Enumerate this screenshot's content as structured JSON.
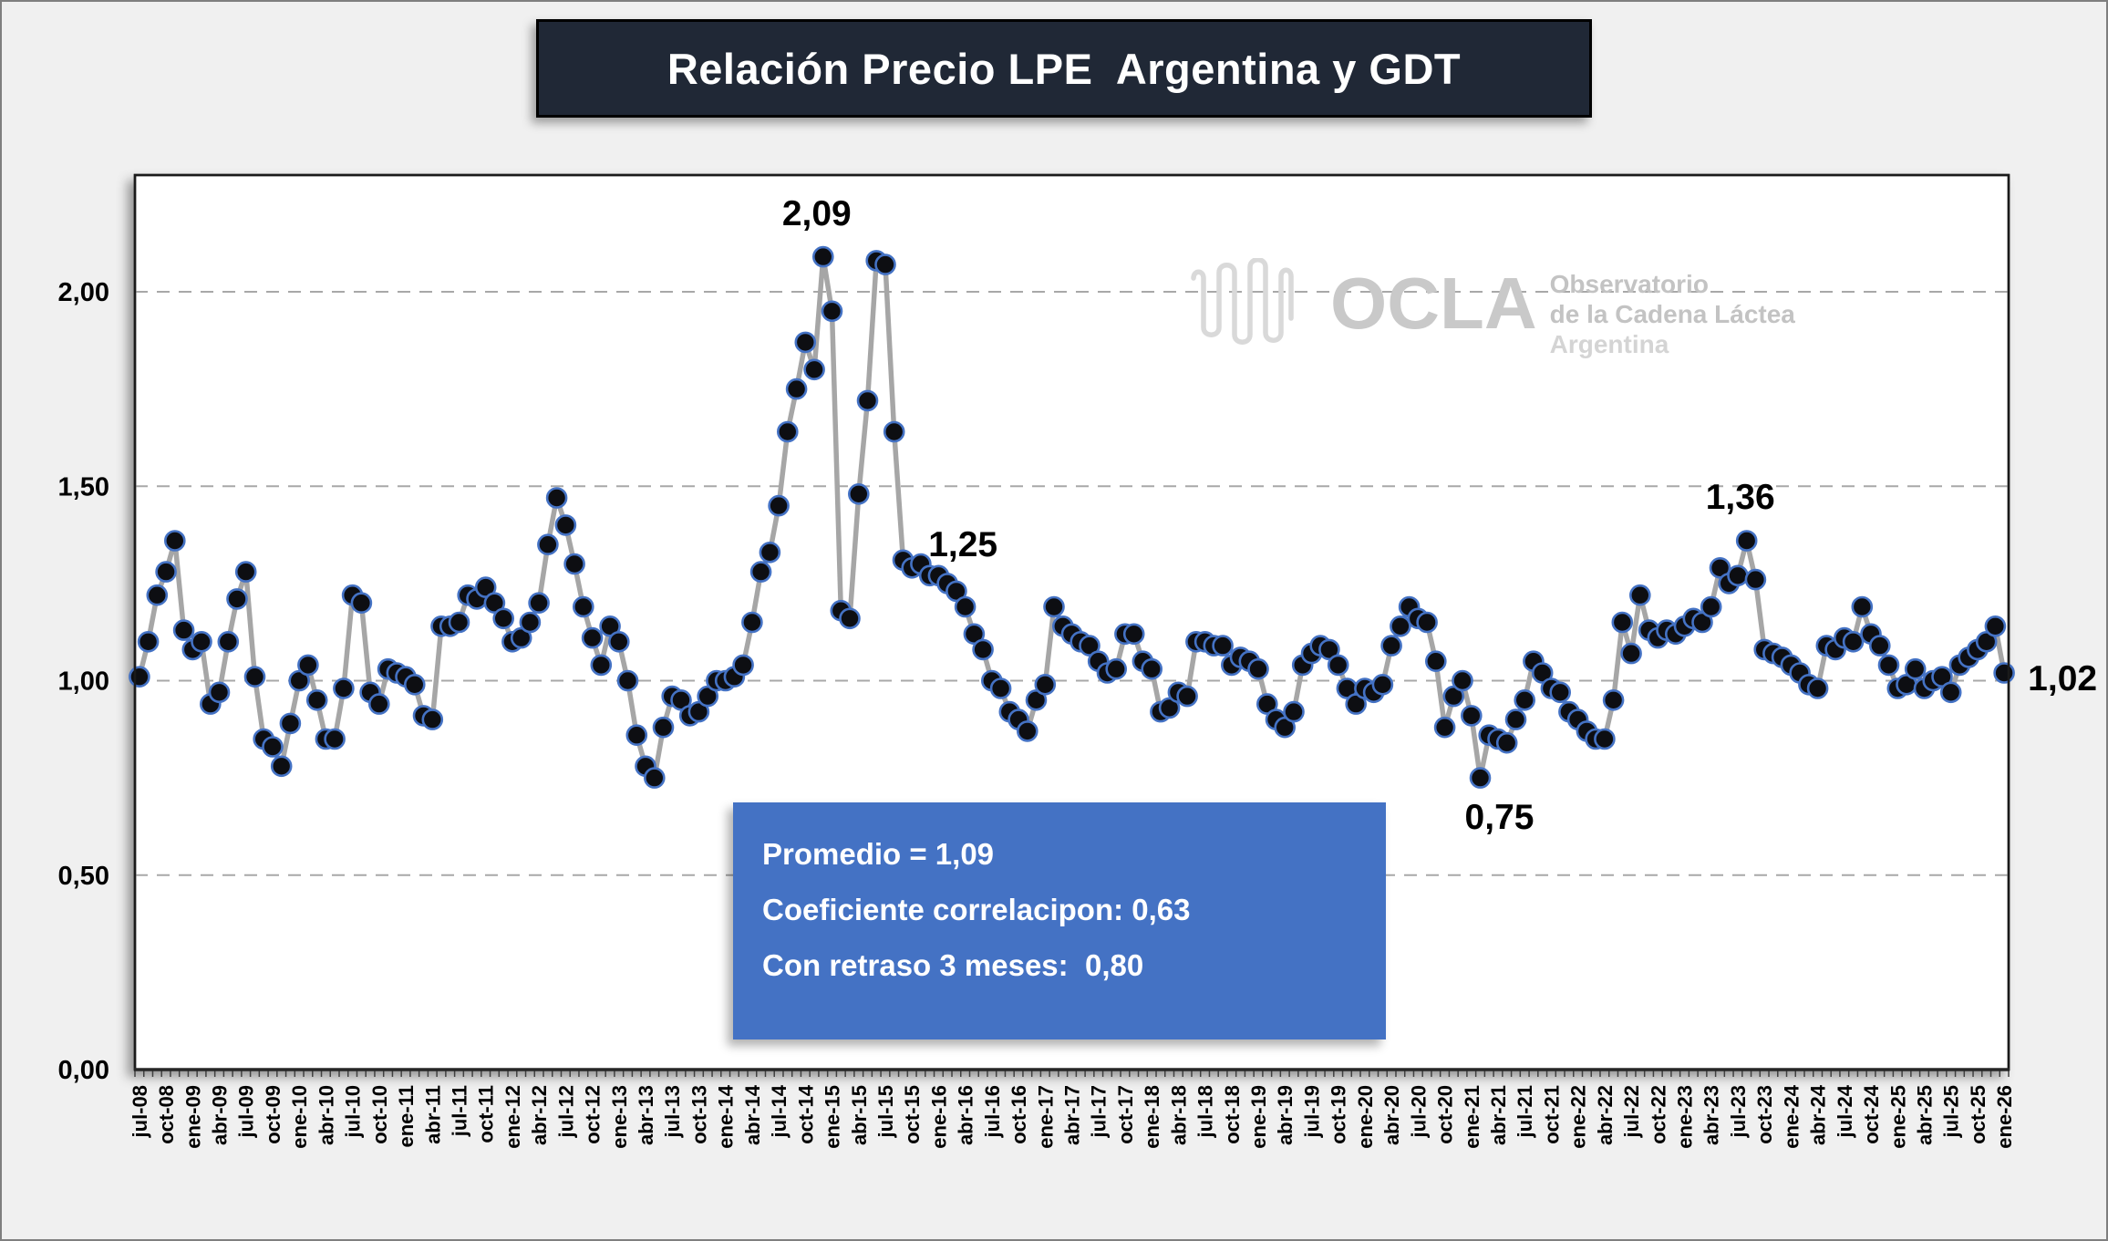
{
  "title": "Relación Precio LPE  Argentina y GDT",
  "logo": {
    "brand": "OCLA",
    "line1": "Observatorio",
    "line2": "de la Cadena Láctea",
    "line3": "Argentina"
  },
  "info_box": {
    "line1": "Promedio = 1,09",
    "line2": "Coeficiente correlacipon: 0,63",
    "line3": "Con retraso 3 meses:  0,80"
  },
  "chart_data": {
    "type": "line",
    "title": "Relación Precio LPE Argentina y GDT",
    "xlabel": "",
    "ylabel": "",
    "ylim": [
      0,
      2.3
    ],
    "grid": "horizontal-dashed",
    "legend_position": "none",
    "x_label_interval_months": 3,
    "x_labels": [
      "jul-08",
      "oct-08",
      "ene-09",
      "abr-09",
      "jul-09",
      "oct-09",
      "ene-10",
      "abr-10",
      "jul-10",
      "oct-10",
      "ene-11",
      "abr-11",
      "jul-11",
      "oct-11",
      "ene-12",
      "abr-12",
      "jul-12",
      "oct-12",
      "ene-13",
      "abr-13",
      "jul-13",
      "oct-13",
      "ene-14",
      "abr-14",
      "jul-14",
      "oct-14",
      "ene-15",
      "abr-15",
      "jul-15",
      "oct-15",
      "ene-16",
      "abr-16",
      "jul-16",
      "oct-16",
      "ene-17",
      "abr-17",
      "jul-17",
      "oct-17",
      "ene-18",
      "abr-18",
      "jul-18",
      "oct-18",
      "ene-19",
      "abr-19",
      "jul-19",
      "oct-19",
      "ene-20",
      "abr-20",
      "jul-20",
      "oct-20",
      "ene-21",
      "abr-21",
      "jul-21",
      "oct-21",
      "ene-22",
      "abr-22",
      "jul-22",
      "oct-22",
      "ene-23",
      "abr-23",
      "jul-23",
      "oct-23",
      "ene-24",
      "abr-24",
      "jul-24",
      "oct-24",
      "ene-25",
      "abr-25",
      "jul-25",
      "oct-25",
      "ene-26"
    ],
    "y_ticks": [
      "0,00",
      "0,50",
      "1,00",
      "1,50",
      "2,00"
    ],
    "y_tick_values": [
      0,
      0.5,
      1.0,
      1.5,
      2.0
    ],
    "series": [
      {
        "name": "Relación Precio LPE Argentina y GDT",
        "start_month": "jul-08",
        "frequency": "monthly",
        "values": [
          1.01,
          1.1,
          1.22,
          1.28,
          1.36,
          1.13,
          1.08,
          1.1,
          0.94,
          0.97,
          1.1,
          1.21,
          1.28,
          1.01,
          0.85,
          0.83,
          0.78,
          0.89,
          1.0,
          1.04,
          0.95,
          0.85,
          0.85,
          0.98,
          1.22,
          1.2,
          0.97,
          0.94,
          1.03,
          1.02,
          1.01,
          0.99,
          0.91,
          0.9,
          1.14,
          1.14,
          1.15,
          1.22,
          1.21,
          1.24,
          1.2,
          1.16,
          1.1,
          1.11,
          1.15,
          1.2,
          1.35,
          1.47,
          1.4,
          1.3,
          1.19,
          1.11,
          1.04,
          1.14,
          1.1,
          1.0,
          0.86,
          0.78,
          0.75,
          0.88,
          0.96,
          0.95,
          0.91,
          0.92,
          0.96,
          1.0,
          1.0,
          1.01,
          1.04,
          1.15,
          1.28,
          1.33,
          1.45,
          1.64,
          1.75,
          1.87,
          1.8,
          2.09,
          1.95,
          1.18,
          1.16,
          1.48,
          1.72,
          2.08,
          2.07,
          1.64,
          1.31,
          1.29,
          1.3,
          1.27,
          1.27,
          1.25,
          1.23,
          1.19,
          1.12,
          1.08,
          1.0,
          0.98,
          0.92,
          0.9,
          0.87,
          0.95,
          0.99,
          1.19,
          1.14,
          1.12,
          1.1,
          1.09,
          1.05,
          1.02,
          1.03,
          1.12,
          1.12,
          1.05,
          1.03,
          0.92,
          0.93,
          0.97,
          0.96,
          1.1,
          1.1,
          1.09,
          1.09,
          1.04,
          1.06,
          1.05,
          1.03,
          0.94,
          0.9,
          0.88,
          0.92,
          1.04,
          1.07,
          1.09,
          1.08,
          1.04,
          0.98,
          0.94,
          0.98,
          0.97,
          0.99,
          1.09,
          1.14,
          1.19,
          1.16,
          1.15,
          1.05,
          0.88,
          0.96,
          1.0,
          0.91,
          0.75,
          0.86,
          0.85,
          0.84,
          0.9,
          0.95,
          1.05,
          1.02,
          0.98,
          0.97,
          0.92,
          0.9,
          0.87,
          0.85,
          0.85,
          0.95,
          1.15,
          1.07,
          1.22,
          1.13,
          1.11,
          1.13,
          1.12,
          1.14,
          1.16,
          1.15,
          1.19,
          1.29,
          1.25,
          1.27,
          1.36,
          1.26,
          1.08,
          1.07,
          1.06,
          1.04,
          1.02,
          0.99,
          0.98,
          1.09,
          1.08,
          1.11,
          1.1,
          1.19,
          1.12,
          1.09,
          1.04,
          0.98,
          0.99,
          1.03,
          0.98,
          1.0,
          1.01,
          0.97,
          1.04,
          1.06,
          1.08,
          1.1,
          1.14,
          1.02
        ]
      }
    ],
    "annotations": [
      {
        "index": 77,
        "month": "dic-14",
        "label": "2,09",
        "placement": "above"
      },
      {
        "index": 91,
        "month": "feb-16",
        "label": "1,25",
        "placement": "above-right"
      },
      {
        "index": 151,
        "month": "feb-21",
        "label": "0,75",
        "placement": "below"
      },
      {
        "index": 181,
        "month": "ago-23",
        "label": "1,36",
        "placement": "above"
      },
      {
        "index": 210,
        "month": "ene-26",
        "label": "1,02",
        "placement": "right"
      }
    ],
    "colors": {
      "background": "#f0f0f0",
      "plot_background": "#ffffff",
      "line": "#a6a6a6",
      "marker_fill": "#0d0e12",
      "marker_ring": "#4472c4",
      "grid": "#a8a8a8",
      "title_bg": "#202836",
      "info_box_bg": "#4472c4"
    }
  }
}
